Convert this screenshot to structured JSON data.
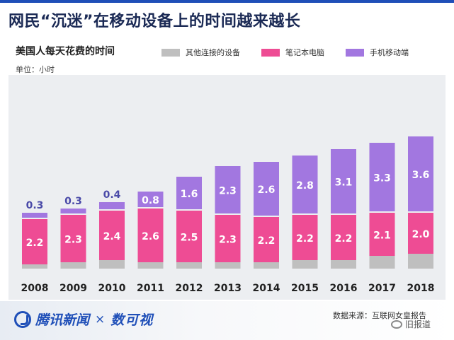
{
  "header": {
    "title": "网民“沉迷”在移动设备上的时间越来越长"
  },
  "chart_data": {
    "type": "bar",
    "stacked": true,
    "title": "美国人每天花费的时间",
    "unit_label": "单位：小时",
    "categories": [
      "2008",
      "2009",
      "2010",
      "2011",
      "2012",
      "2013",
      "2014",
      "2015",
      "2016",
      "2017",
      "2018"
    ],
    "series": [
      {
        "name": "其他连接的设备",
        "color": "#bfbfbf",
        "values": [
          0.2,
          0.3,
          0.4,
          0.3,
          0.3,
          0.3,
          0.3,
          0.4,
          0.4,
          0.6,
          0.7
        ]
      },
      {
        "name": "笔记本电脑",
        "color": "#ee4c94",
        "values": [
          2.2,
          2.3,
          2.4,
          2.6,
          2.5,
          2.3,
          2.2,
          2.2,
          2.2,
          2.1,
          2.0
        ]
      },
      {
        "name": "手机移动端",
        "color": "#a277e0",
        "values": [
          0.3,
          0.3,
          0.4,
          0.8,
          1.6,
          2.3,
          2.6,
          2.8,
          3.1,
          3.3,
          3.6
        ]
      }
    ],
    "ylim": [
      0,
      6.5
    ],
    "grid": false,
    "legend_position": "top"
  },
  "footer": {
    "brand": "腾讯新闻",
    "separator": "×",
    "partner": "数可视",
    "source": "数据来源：互联网女皇报告",
    "watermark": "旧报道"
  }
}
